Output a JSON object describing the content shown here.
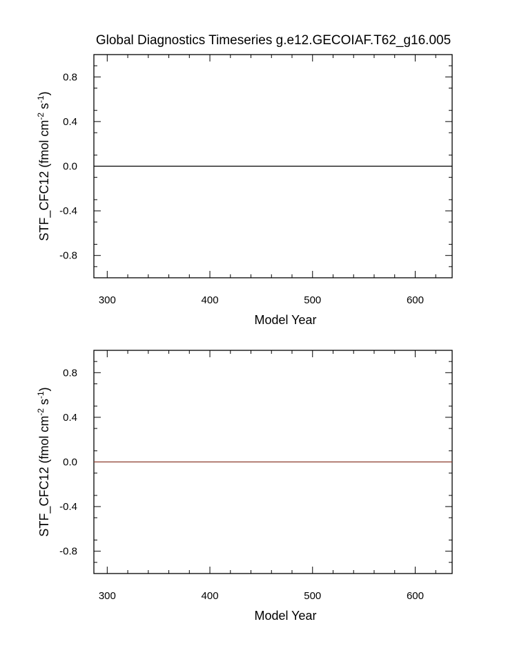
{
  "title": "Global Diagnostics Timeseries g.e12.GECOIAF.T62_g16.005",
  "chart_data": [
    {
      "type": "line",
      "xlabel": "Model Year",
      "ylabel": {
        "main": "STF_CFC12 (fmol cm",
        "exp1": "-2",
        "mid": " s",
        "exp2": "-1",
        "end": ")"
      },
      "xlim": [
        287,
        636
      ],
      "ylim": [
        -1,
        1
      ],
      "x_ticks": [
        300,
        400,
        500,
        600
      ],
      "x_tick_labels": [
        "300",
        "400",
        "500",
        "600"
      ],
      "y_ticks": [
        0.8,
        0.4,
        0.0,
        -0.4,
        -0.8
      ],
      "y_tick_labels": [
        "0.8",
        "0.4",
        "0.0",
        "-0.4",
        "-0.8"
      ],
      "series": [
        {
          "x": [
            287,
            636
          ],
          "y": [
            0.0,
            0.0
          ],
          "color": "#000000"
        }
      ]
    },
    {
      "type": "line",
      "xlabel": "Model Year",
      "ylabel": {
        "main": "STF_CFC12 (fmol cm",
        "exp1": "-2",
        "mid": " s",
        "exp2": "-1",
        "end": ")"
      },
      "xlim": [
        287,
        636
      ],
      "ylim": [
        -1,
        1
      ],
      "x_ticks": [
        300,
        400,
        500,
        600
      ],
      "x_tick_labels": [
        "300",
        "400",
        "500",
        "600"
      ],
      "y_ticks": [
        0.8,
        0.4,
        0.0,
        -0.4,
        -0.8
      ],
      "y_tick_labels": [
        "0.8",
        "0.4",
        "0.0",
        "-0.4",
        "-0.8"
      ],
      "series": [
        {
          "x": [
            287,
            636
          ],
          "y": [
            0.0,
            0.0
          ],
          "color": "#8b3a2a"
        }
      ]
    }
  ]
}
